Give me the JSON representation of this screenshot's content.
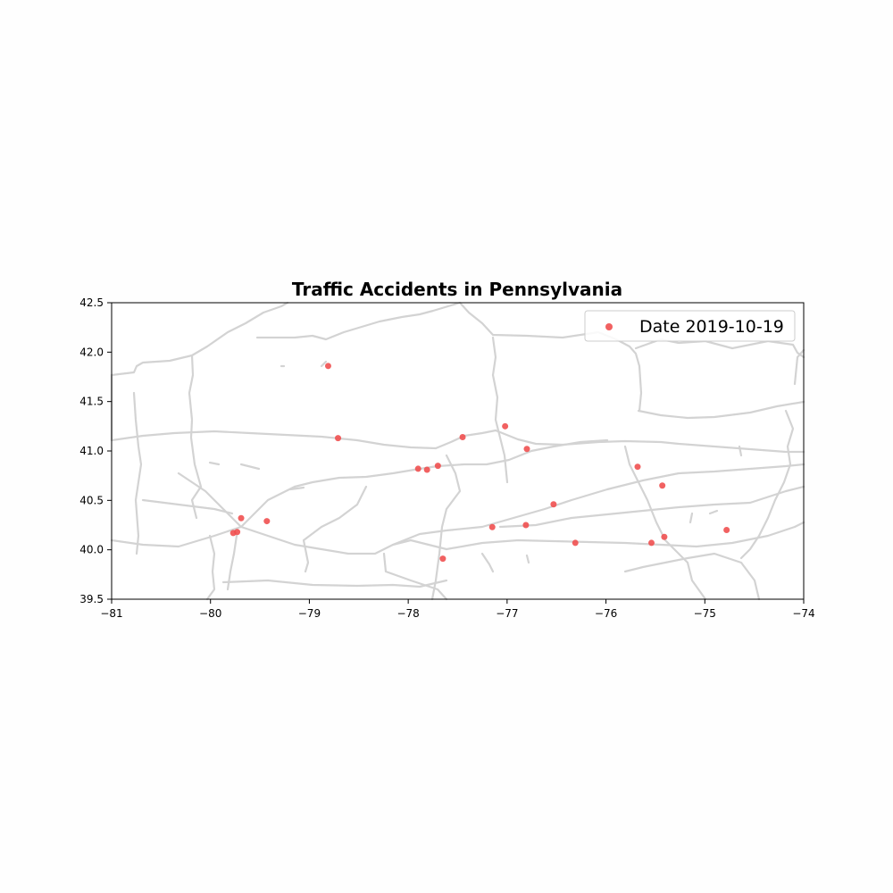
{
  "chart_data": {
    "type": "scatter",
    "title": "Traffic Accidents in Pennsylvania",
    "xlabel": "",
    "ylabel": "",
    "xlim": [
      -81,
      -74
    ],
    "ylim": [
      39.5,
      42.5
    ],
    "x_ticks": [
      -81,
      -80,
      -79,
      -78,
      -77,
      -76,
      -75,
      -74
    ],
    "y_ticks": [
      39.5,
      40.0,
      40.5,
      41.0,
      41.5,
      42.0,
      42.5
    ],
    "x_tick_labels": [
      "−81",
      "−80",
      "−79",
      "−78",
      "−77",
      "−76",
      "−75",
      "−74"
    ],
    "y_tick_labels": [
      "39.5",
      "40.0",
      "40.5",
      "41.0",
      "41.5",
      "42.0",
      "42.5"
    ],
    "grid": false,
    "legend_position": "top-right",
    "colors": {
      "points": "#f05050",
      "roads": "#d3d3d3",
      "axes": "#000000"
    },
    "series": [
      {
        "name": "Date 2019-10-19",
        "points": [
          [
            -78.81,
            41.86
          ],
          [
            -78.71,
            41.13
          ],
          [
            -77.45,
            41.14
          ],
          [
            -77.02,
            41.25
          ],
          [
            -76.8,
            41.02
          ],
          [
            -77.9,
            40.82
          ],
          [
            -77.81,
            40.81
          ],
          [
            -77.7,
            40.85
          ],
          [
            -75.68,
            40.84
          ],
          [
            -75.43,
            40.65
          ],
          [
            -79.69,
            40.32
          ],
          [
            -79.43,
            40.29
          ],
          [
            -79.77,
            40.17
          ],
          [
            -79.73,
            40.18
          ],
          [
            -76.53,
            40.46
          ],
          [
            -77.15,
            40.23
          ],
          [
            -76.81,
            40.25
          ],
          [
            -77.65,
            39.91
          ],
          [
            -76.31,
            40.07
          ],
          [
            -75.54,
            40.07
          ],
          [
            -75.41,
            40.13
          ],
          [
            -74.78,
            40.2
          ]
        ]
      }
    ]
  }
}
